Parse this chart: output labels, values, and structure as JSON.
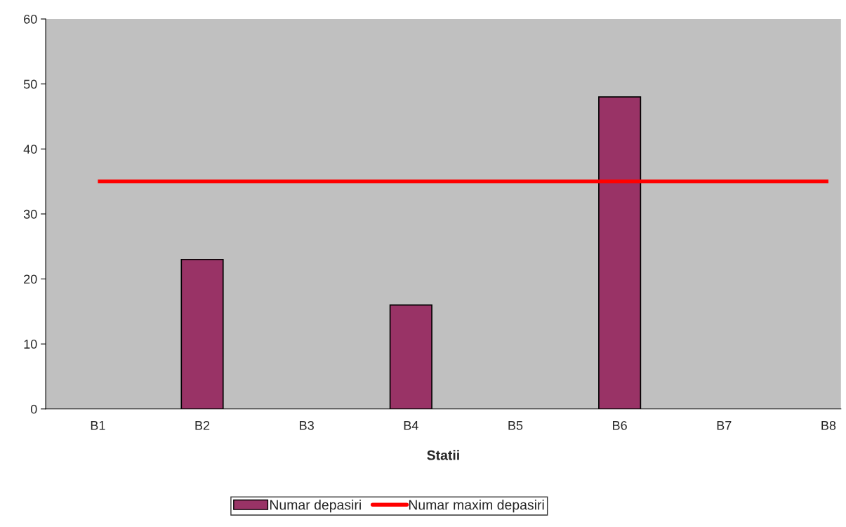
{
  "chart_data": {
    "type": "bar",
    "xlabel": "Statii",
    "categories": [
      "B1",
      "B2",
      "B3",
      "B4",
      "B5",
      "B6",
      "B7",
      "B8"
    ],
    "series": [
      {
        "name": "Numar depasiri",
        "color": "#993366",
        "values": [
          null,
          23,
          null,
          16,
          null,
          48,
          null,
          null
        ]
      },
      {
        "name": "Numar maxim depasiri",
        "type": "line",
        "color": "#ff0000",
        "values": [
          35,
          35,
          35,
          35,
          35,
          35,
          35,
          35
        ]
      }
    ],
    "ylim": [
      0,
      60
    ],
    "yticks": [
      0,
      10,
      20,
      30,
      40,
      50,
      60
    ],
    "grid": false,
    "legend": "bottom"
  }
}
